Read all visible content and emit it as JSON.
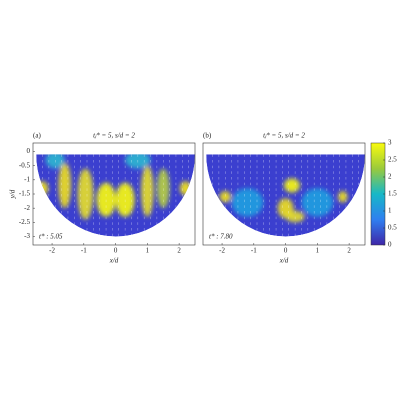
{
  "chart_data": [
    {
      "type": "field",
      "label": "(a)",
      "title": "tⱼ* = 5, s/d = 2",
      "time_label": "t* : 5.05",
      "x_label": "x/d",
      "y_label": "y/d",
      "xlim": [
        -2.6,
        2.5
      ],
      "ylim": [
        -3.3,
        0.3
      ],
      "xticks": [
        -2,
        -1,
        0,
        1,
        2
      ],
      "yticks": [
        0,
        -0.5,
        -1,
        -1.5,
        -2,
        -2.5,
        -3
      ]
    },
    {
      "type": "field",
      "label": "(b)",
      "title": "tⱼ* = 5, s/d = 2",
      "time_label": "t* : 7.80",
      "x_label": "x/d",
      "xlim": [
        -2.6,
        2.5
      ],
      "ylim": [
        -3.3,
        0.3
      ],
      "xticks": [
        -2,
        -1,
        0,
        1,
        2
      ]
    }
  ],
  "colorbar": {
    "lim": [
      0,
      3
    ],
    "ticks": [
      0,
      0.5,
      1,
      1.5,
      2,
      2.5,
      3
    ]
  }
}
